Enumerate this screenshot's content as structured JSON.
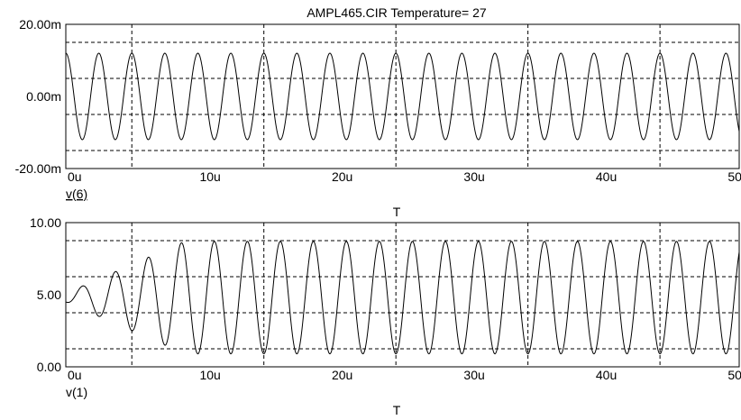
{
  "title": "AMPL465.CIR Temperature= 27",
  "chart_data": [
    {
      "type": "line",
      "series": [
        {
          "name": "v(6)",
          "period_us": 2.5,
          "offset": 0.0,
          "amplitude_start": 0.012,
          "amplitude_end": 0.012,
          "phase_deg": 0
        }
      ],
      "xlabel": "T",
      "ylabel": "",
      "xlim": [
        0,
        51
      ],
      "ylim": [
        -0.02,
        0.02
      ],
      "x_ticks": [
        0,
        10,
        20,
        30,
        40,
        50
      ],
      "x_tick_labels": [
        "0u",
        "10u",
        "20u",
        "30u",
        "40u",
        "50u"
      ],
      "y_ticks": [
        -0.02,
        0,
        0.02
      ],
      "y_tick_labels": [
        "-20.00m",
        "0.00m",
        "20.00m"
      ],
      "grid_x": [
        5,
        15,
        25,
        35,
        45
      ],
      "grid_y": [
        -0.015,
        -0.005,
        0.005,
        0.015
      ],
      "grid": true,
      "legend": "below-left"
    },
    {
      "type": "line",
      "series": [
        {
          "name": "v(1)",
          "period_us": 2.5,
          "offset": 4.8,
          "amplitude_start": 0.3,
          "amplitude_end": 3.9,
          "settle_us": 9,
          "phase_deg": 180
        }
      ],
      "xlabel": "T",
      "ylabel": "",
      "xlim": [
        0,
        51
      ],
      "ylim": [
        0,
        10
      ],
      "x_ticks": [
        0,
        10,
        20,
        30,
        40,
        50
      ],
      "x_tick_labels": [
        "0u",
        "10u",
        "20u",
        "30u",
        "40u",
        "50u"
      ],
      "y_ticks": [
        0,
        5,
        10
      ],
      "y_tick_labels": [
        "0.00",
        "5.00",
        "10.00"
      ],
      "grid_x": [
        5,
        15,
        25,
        35,
        45
      ],
      "grid_y": [
        1.25,
        3.75,
        6.25,
        8.75
      ],
      "grid": true,
      "legend": "below-left"
    }
  ]
}
